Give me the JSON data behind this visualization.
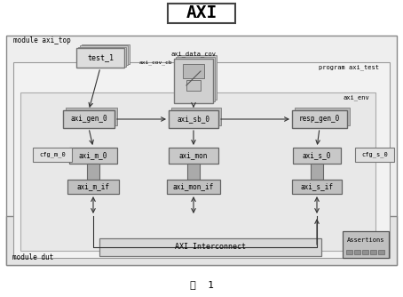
{
  "title": "AXI",
  "caption": "图  1",
  "module_axi_top_label": "module axi_top",
  "program_label": "program axi_test",
  "axi_env_label": "axi_env",
  "module_dut_label": "module dut",
  "axi_interconnect_label": "AXI Interconnect",
  "assertions_label": "Assertions",
  "test1_label": "test_1",
  "axi_data_cov_label": "axi_data_cov",
  "axi_cov_cb_label": "axi_cov_cb",
  "axi_gen0_label": "axi_gen_0",
  "axi_sb0_label": "axi_sb_0",
  "resp_gen0_label": "resp_gen_0",
  "cfg_m0_label": "cfg_m_0",
  "axi_m0_label": "axi_m_0",
  "axi_m_if_label": "axi_m_if",
  "axi_mon_label": "axi_mon",
  "axi_mon_if_label": "axi_mon_if",
  "axi_s0_label": "axi_s_0",
  "axi_s_if_label": "axi_s_if",
  "cfg_s0_label": "cfg_s_0",
  "outer_bg": "#eeeeee",
  "prog_bg": "#f2f2f2",
  "env_bg": "#e8e8e8",
  "dut_bg": "#e0e0e0",
  "box_bg": "#d4d4d4",
  "box_dark": "#b0b0b0",
  "rod_color": "#888888",
  "white": "#ffffff",
  "edge_color": "#666666",
  "edge_dark": "#444444",
  "arrow_color": "#333333"
}
